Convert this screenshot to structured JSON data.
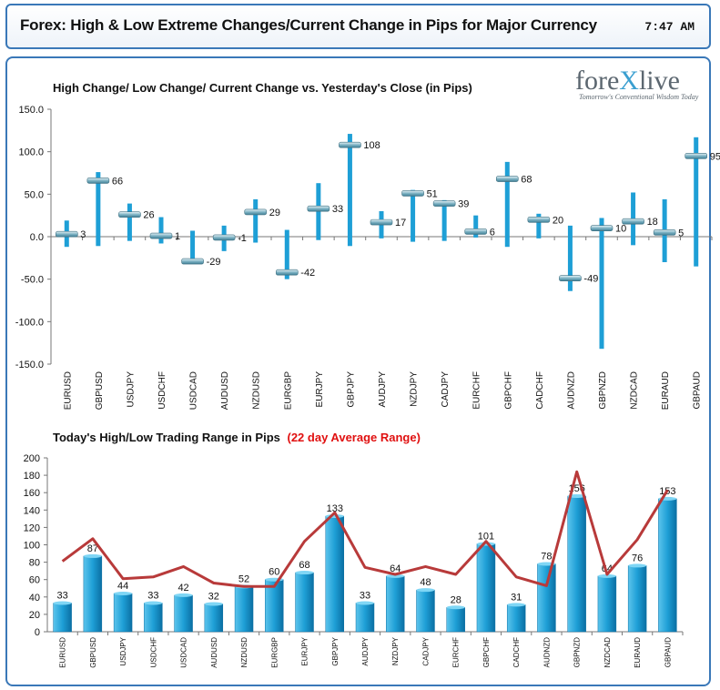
{
  "header": {
    "title": "Forex:  High & Low Extreme Changes/Current Change in Pips for Major Currency",
    "time": "7:47  AM"
  },
  "logo": {
    "name_left": "fore",
    "name_x": "X",
    "name_right": "live",
    "tagline": "Tomorrow's Conventional Wisdom Today"
  },
  "colors": {
    "bar": "#1e9fd6",
    "bar_dark": "#0b6fa3",
    "marker": "#7fb3c4",
    "avg_line": "#b83a3a",
    "avg_label": "#e01010",
    "border": "#3a78b8"
  },
  "chart_data": [
    {
      "type": "bar",
      "title": "High Change/ Low Change/ Current Change vs. Yesterday's Close (in Pips)",
      "categories": [
        "EURUSD",
        "GBPUSD",
        "USDJPY",
        "USDCHF",
        "USDCAD",
        "AUDUSD",
        "NZDUSD",
        "EURGBP",
        "EURJPY",
        "GBPJPY",
        "AUDJPY",
        "NZDJPY",
        "CADJPY",
        "EURCHF",
        "GBPCHF",
        "CADCHF",
        "AUDNZD",
        "GBPNZD",
        "NZDCAD",
        "EURAUD",
        "GBPAUD"
      ],
      "series": [
        {
          "name": "High",
          "values": [
            19,
            76,
            39,
            23,
            7,
            13,
            44,
            8,
            63,
            121,
            30,
            55,
            43,
            25,
            88,
            27,
            13,
            22,
            52,
            44,
            117
          ]
        },
        {
          "name": "Low",
          "values": [
            -12,
            -11,
            -5,
            -8,
            -32,
            -17,
            -7,
            -50,
            -4,
            -11,
            -2,
            -6,
            -5,
            -1,
            -12,
            -2,
            -64,
            -132,
            -10,
            -30,
            -35
          ]
        },
        {
          "name": "Current",
          "values": [
            3,
            66,
            26,
            1,
            -29,
            -1,
            29,
            -42,
            33,
            108,
            17,
            51,
            39,
            6,
            68,
            20,
            -49,
            10,
            18,
            5,
            95
          ]
        }
      ],
      "data_labels": [
        "3",
        "66",
        "26",
        "1",
        "-29",
        "-1",
        "29",
        "-42",
        "33",
        "108",
        "17",
        "51",
        "39",
        "6",
        "68",
        "20",
        "-49",
        "10",
        "18",
        "5",
        "95"
      ],
      "ylim": [
        -150,
        150
      ],
      "yticks": [
        "150.0",
        "100.0",
        "50.0",
        "0.0",
        "-50.0",
        "-100.0",
        "-150.0"
      ],
      "legend": "none",
      "grid": false
    },
    {
      "type": "bar",
      "title": "Today's High/Low Trading Range in Pips",
      "title_highlight": "(22 day Average Range)",
      "categories": [
        "EURUSD",
        "GBPUSD",
        "USDJPY",
        "USDCHF",
        "USDCAD",
        "AUDUSD",
        "NZDUSD",
        "EURGBP",
        "EURJPY",
        "GBPJPY",
        "AUDJPY",
        "NZDJPY",
        "CADJPY",
        "EURCHF",
        "GBPCHF",
        "CADCHF",
        "AUDNZD",
        "GBPNZD",
        "NZDCAD",
        "EURAUD",
        "GBPAUD"
      ],
      "series": [
        {
          "name": "Today's Range",
          "values": [
            33,
            87,
            44,
            33,
            42,
            32,
            52,
            60,
            68,
            133,
            33,
            64,
            48,
            28,
            101,
            31,
            78,
            156,
            64,
            76,
            153
          ]
        },
        {
          "name": "22 day Average Range",
          "type": "line",
          "values": [
            81,
            107,
            61,
            63,
            75,
            56,
            52,
            52,
            104,
            137,
            74,
            66,
            75,
            66,
            104,
            63,
            53,
            184,
            66,
            106,
            163
          ]
        }
      ],
      "data_labels": [
        "33",
        "87",
        "44",
        "33",
        "42",
        "32",
        "52",
        "60",
        "68",
        "133",
        "33",
        "64",
        "48",
        "28",
        "101",
        "31",
        "78",
        "156",
        "64",
        "76",
        "153"
      ],
      "ylim": [
        0,
        200
      ],
      "yticks": [
        "200",
        "180",
        "160",
        "140",
        "120",
        "100",
        "80",
        "60",
        "40",
        "20",
        "0"
      ],
      "legend": "none",
      "grid": false
    }
  ]
}
